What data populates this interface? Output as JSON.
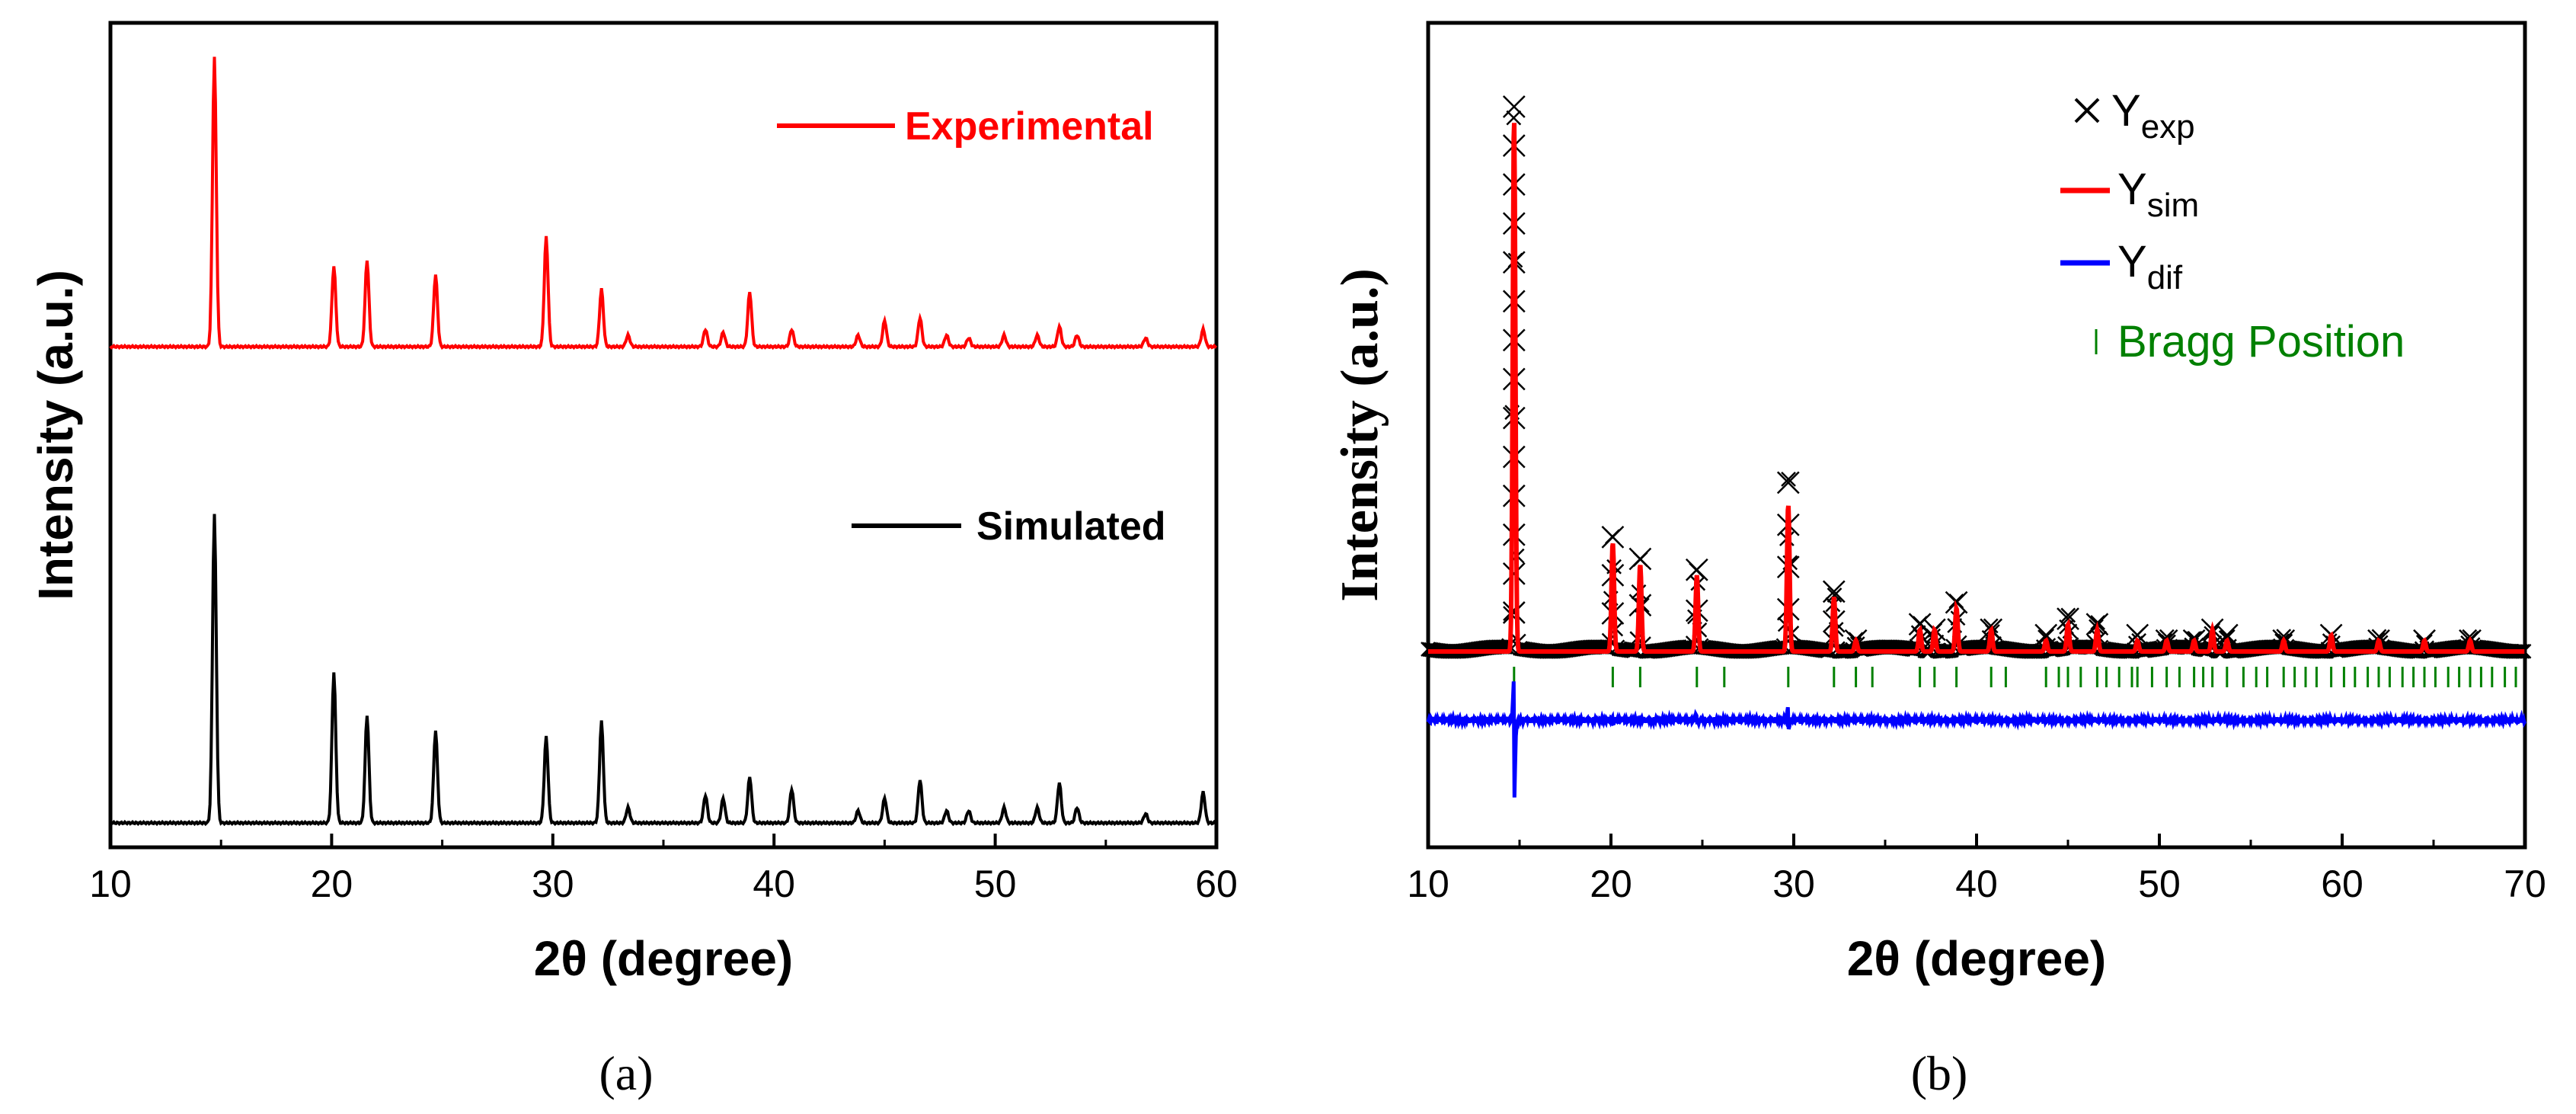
{
  "chart_data": [
    {
      "type": "line",
      "panel_label": "(a)",
      "xlabel": "2θ (degree)",
      "ylabel": "Intensity (a.u.)",
      "xlim": [
        10,
        60
      ],
      "xticks": [
        "10",
        "20",
        "30",
        "40",
        "50",
        "60"
      ],
      "colors": {
        "Experimental": "#ff0000",
        "Simulated": "#000000"
      },
      "series": [
        {
          "name": "Experimental",
          "peaks": [
            [
              14.7,
              1.0
            ],
            [
              20.1,
              0.28
            ],
            [
              21.6,
              0.3
            ],
            [
              24.7,
              0.25
            ],
            [
              29.7,
              0.38
            ],
            [
              32.2,
              0.2
            ],
            [
              33.4,
              0.04
            ],
            [
              36.9,
              0.06
            ],
            [
              37.7,
              0.05
            ],
            [
              38.9,
              0.19
            ],
            [
              40.8,
              0.06
            ],
            [
              43.8,
              0.04
            ],
            [
              45.0,
              0.09
            ],
            [
              46.6,
              0.1
            ],
            [
              47.8,
              0.04
            ],
            [
              48.8,
              0.03
            ],
            [
              50.4,
              0.04
            ],
            [
              51.9,
              0.04
            ],
            [
              52.9,
              0.07
            ],
            [
              53.7,
              0.04
            ],
            [
              56.8,
              0.03
            ],
            [
              59.4,
              0.06
            ]
          ]
        },
        {
          "name": "Simulated",
          "peaks": [
            [
              14.7,
              1.0
            ],
            [
              20.1,
              0.49
            ],
            [
              21.6,
              0.35
            ],
            [
              24.7,
              0.3
            ],
            [
              29.7,
              0.28
            ],
            [
              32.2,
              0.33
            ],
            [
              33.4,
              0.05
            ],
            [
              36.9,
              0.09
            ],
            [
              37.7,
              0.08
            ],
            [
              38.9,
              0.15
            ],
            [
              40.8,
              0.11
            ],
            [
              43.8,
              0.04
            ],
            [
              45.0,
              0.08
            ],
            [
              46.6,
              0.14
            ],
            [
              47.8,
              0.04
            ],
            [
              48.8,
              0.04
            ],
            [
              50.4,
              0.05
            ],
            [
              51.9,
              0.05
            ],
            [
              52.9,
              0.13
            ],
            [
              53.7,
              0.05
            ],
            [
              56.8,
              0.03
            ],
            [
              59.4,
              0.1
            ]
          ]
        }
      ]
    },
    {
      "type": "scatter",
      "panel_label": "(b)",
      "xlabel": "2θ (degree)",
      "ylabel": "Intensity (a.u.)",
      "xlim": [
        10,
        70
      ],
      "xticks": [
        "10",
        "20",
        "30",
        "40",
        "50",
        "60",
        "70"
      ],
      "colors": {
        "Yexp": "#000000",
        "Ysim": "#ff0000",
        "Ydif": "#0000ff",
        "Bragg": "#008000"
      },
      "legend": [
        {
          "base": "Y",
          "sub": "exp"
        },
        {
          "base": "Y",
          "sub": "sim"
        },
        {
          "base": "Y",
          "sub": "dif"
        },
        {
          "text": "Bragg Position"
        }
      ],
      "series": [
        {
          "name": "Yexp",
          "peaks": [
            [
              14.7,
              1.0
            ],
            [
              20.1,
              0.21
            ],
            [
              21.6,
              0.17
            ],
            [
              24.7,
              0.15
            ],
            [
              29.7,
              0.31
            ],
            [
              32.2,
              0.11
            ],
            [
              33.4,
              0.02
            ],
            [
              36.9,
              0.05
            ],
            [
              37.7,
              0.04
            ],
            [
              38.9,
              0.09
            ],
            [
              40.8,
              0.04
            ],
            [
              43.8,
              0.03
            ],
            [
              45.0,
              0.06
            ],
            [
              46.6,
              0.05
            ],
            [
              48.8,
              0.03
            ],
            [
              50.4,
              0.02
            ],
            [
              51.9,
              0.02
            ],
            [
              52.9,
              0.04
            ],
            [
              53.7,
              0.03
            ],
            [
              56.8,
              0.02
            ],
            [
              59.4,
              0.03
            ],
            [
              62.0,
              0.02
            ],
            [
              64.5,
              0.02
            ],
            [
              67.0,
              0.02
            ]
          ]
        },
        {
          "name": "Ysim",
          "peaks": [
            [
              14.7,
              0.98
            ],
            [
              20.1,
              0.2
            ],
            [
              21.6,
              0.16
            ],
            [
              24.7,
              0.14
            ],
            [
              29.7,
              0.27
            ],
            [
              32.2,
              0.1
            ],
            [
              33.4,
              0.02
            ],
            [
              36.9,
              0.04
            ],
            [
              37.7,
              0.04
            ],
            [
              38.9,
              0.08
            ],
            [
              40.8,
              0.04
            ],
            [
              43.8,
              0.02
            ],
            [
              45.0,
              0.05
            ],
            [
              46.6,
              0.04
            ],
            [
              48.8,
              0.02
            ],
            [
              50.4,
              0.02
            ],
            [
              51.9,
              0.02
            ],
            [
              52.9,
              0.04
            ],
            [
              53.7,
              0.02
            ],
            [
              56.8,
              0.02
            ],
            [
              59.4,
              0.03
            ],
            [
              62.0,
              0.02
            ],
            [
              64.5,
              0.02
            ],
            [
              67.0,
              0.02
            ]
          ]
        },
        {
          "name": "Ydif",
          "features": [
            [
              14.7,
              0.07,
              -0.15
            ],
            [
              20.1,
              0.01,
              -0.01
            ],
            [
              24.7,
              0.01,
              -0.01
            ],
            [
              29.7,
              0.03,
              -0.02
            ]
          ]
        },
        {
          "name": "Bragg",
          "positions": [
            14.7,
            20.1,
            21.6,
            24.7,
            26.2,
            29.7,
            32.2,
            33.4,
            34.3,
            36.9,
            37.7,
            38.9,
            40.8,
            41.6,
            43.8,
            44.5,
            45.0,
            45.7,
            46.6,
            47.1,
            47.8,
            48.5,
            48.8,
            49.6,
            50.4,
            51.1,
            51.9,
            52.4,
            52.9,
            53.7,
            54.6,
            55.3,
            55.9,
            56.8,
            57.4,
            58.0,
            58.6,
            59.4,
            60.1,
            60.7,
            61.4,
            62.0,
            62.6,
            63.3,
            63.9,
            64.5,
            65.1,
            65.8,
            66.4,
            67.0,
            67.6,
            68.2,
            68.9,
            69.5
          ]
        }
      ]
    }
  ]
}
